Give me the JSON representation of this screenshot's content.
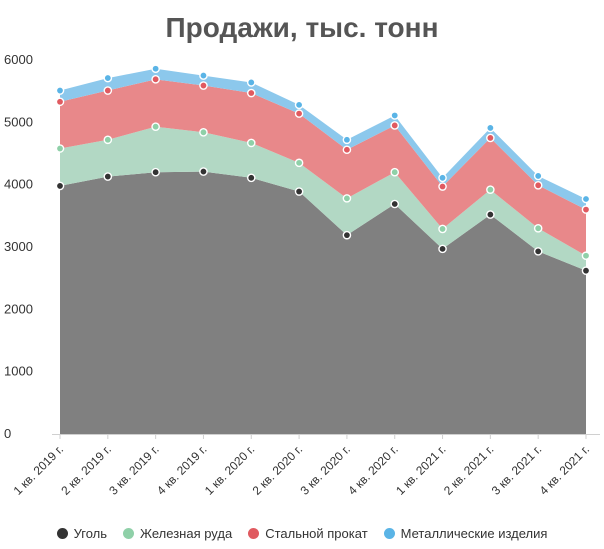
{
  "chart_data": {
    "type": "area",
    "stacked": true,
    "title": "Продажи, тыс. тонн",
    "categories": [
      "1 кв. 2019 г.",
      "2 кв. 2019 г.",
      "3 кв. 2019 г.",
      "4 кв. 2019 г.",
      "1 кв. 2020 г.",
      "2 кв. 2020 г.",
      "3 кв. 2020 г.",
      "4 кв. 2020 г.",
      "1 кв. 2021 г.",
      "2 кв. 2021 г.",
      "3 кв. 2021 г.",
      "4 кв. 2021 г."
    ],
    "series": [
      {
        "name": "Уголь",
        "color": "#808080",
        "marker": "#333333",
        "values": [
          3980,
          4130,
          4200,
          4210,
          4110,
          3890,
          3190,
          3690,
          2970,
          3520,
          2930,
          2620
        ]
      },
      {
        "name": "Железная руда",
        "color": "#b2d8c4",
        "marker": "#8fd0a8",
        "values": [
          600,
          590,
          730,
          630,
          560,
          460,
          590,
          510,
          320,
          400,
          370,
          240
        ]
      },
      {
        "name": "Стальной прокат",
        "color": "#e8888a",
        "marker": "#e05a60",
        "values": [
          750,
          790,
          760,
          750,
          800,
          790,
          780,
          750,
          680,
          830,
          690,
          740
        ]
      },
      {
        "name": "Металлические изделия",
        "color": "#8cc8ec",
        "marker": "#5ab4e6",
        "values": [
          180,
          200,
          170,
          160,
          170,
          140,
          160,
          160,
          140,
          160,
          150,
          170
        ]
      }
    ],
    "yticks": [
      0,
      1000,
      2000,
      3000,
      4000,
      5000,
      6000
    ],
    "ylim": [
      0,
      6000
    ],
    "grid": false,
    "legend": "bottom"
  }
}
